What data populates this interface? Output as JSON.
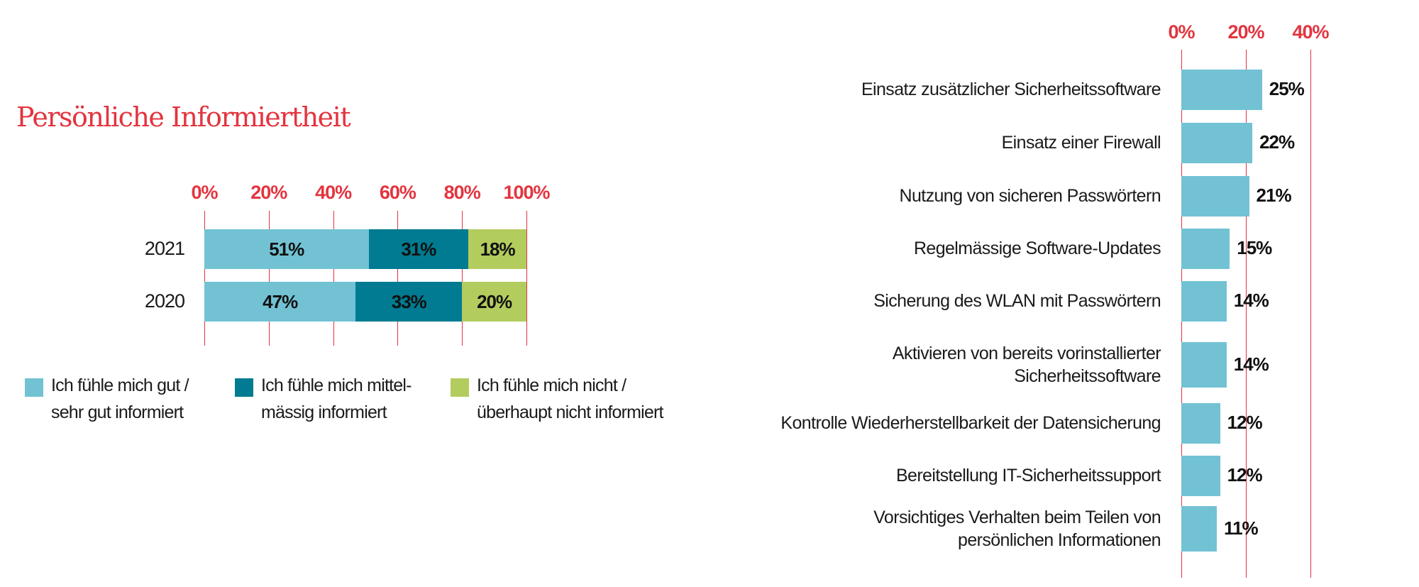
{
  "chart_data": [
    {
      "type": "bar",
      "stacked": true,
      "orientation": "horizontal",
      "title": "Persönliche Informiertheit",
      "categories": [
        "2021",
        "2020"
      ],
      "xlim": [
        0,
        100
      ],
      "xticks": [
        "0%",
        "20%",
        "40%",
        "60%",
        "80%",
        "100%"
      ],
      "grid": true,
      "legend_position": "bottom",
      "series": [
        {
          "name": "Ich fühle mich gut / sehr gut informiert",
          "legend_lines": [
            "Ich fühle mich gut /",
            "sehr gut informiert"
          ],
          "color": "#72c2d4",
          "values": [
            51,
            47
          ],
          "labels": [
            "51%",
            "47%"
          ]
        },
        {
          "name": "Ich fühle mich mittelmässig informiert",
          "legend_lines": [
            "Ich fühle mich mittel-",
            "mässig informiert"
          ],
          "color": "#007b91",
          "values": [
            31,
            33
          ],
          "labels": [
            "31%",
            "33%"
          ]
        },
        {
          "name": "Ich fühle mich nicht / überhaupt nicht informiert",
          "legend_lines": [
            "Ich fühle mich nicht /",
            "überhaupt nicht informiert"
          ],
          "color": "#b3cc5e",
          "values": [
            18,
            20
          ],
          "labels": [
            "18%",
            "20%"
          ]
        }
      ]
    },
    {
      "type": "bar",
      "orientation": "horizontal",
      "title": "",
      "xlim": [
        0,
        40
      ],
      "xticks": [
        "0%",
        "20%",
        "40%"
      ],
      "grid": true,
      "color": "#72c2d4",
      "categories": [
        [
          "Einsatz zusätzlicher Sicherheitssoftware"
        ],
        [
          "Einsatz einer Firewall"
        ],
        [
          "Nutzung von sicheren Passwörtern"
        ],
        [
          "Regelmässige Software-Updates"
        ],
        [
          "Sicherung des WLAN mit Passwörtern"
        ],
        [
          "Aktivieren von bereits vorinstallierter",
          "Sicherheitssoftware"
        ],
        [
          "Kontrolle Wiederherstellbarkeit der Datensicherung"
        ],
        [
          "Bereitstellung IT-Sicherheitssupport"
        ],
        [
          "Vorsichtiges Verhalten beim Teilen von",
          "persönlichen Informationen"
        ]
      ],
      "values": [
        25,
        22,
        21,
        15,
        14,
        14,
        12,
        12,
        11
      ],
      "labels": [
        "25%",
        "22%",
        "21%",
        "15%",
        "14%",
        "14%",
        "12%",
        "12%",
        "11%"
      ]
    }
  ],
  "accent_color": "#e3343f"
}
